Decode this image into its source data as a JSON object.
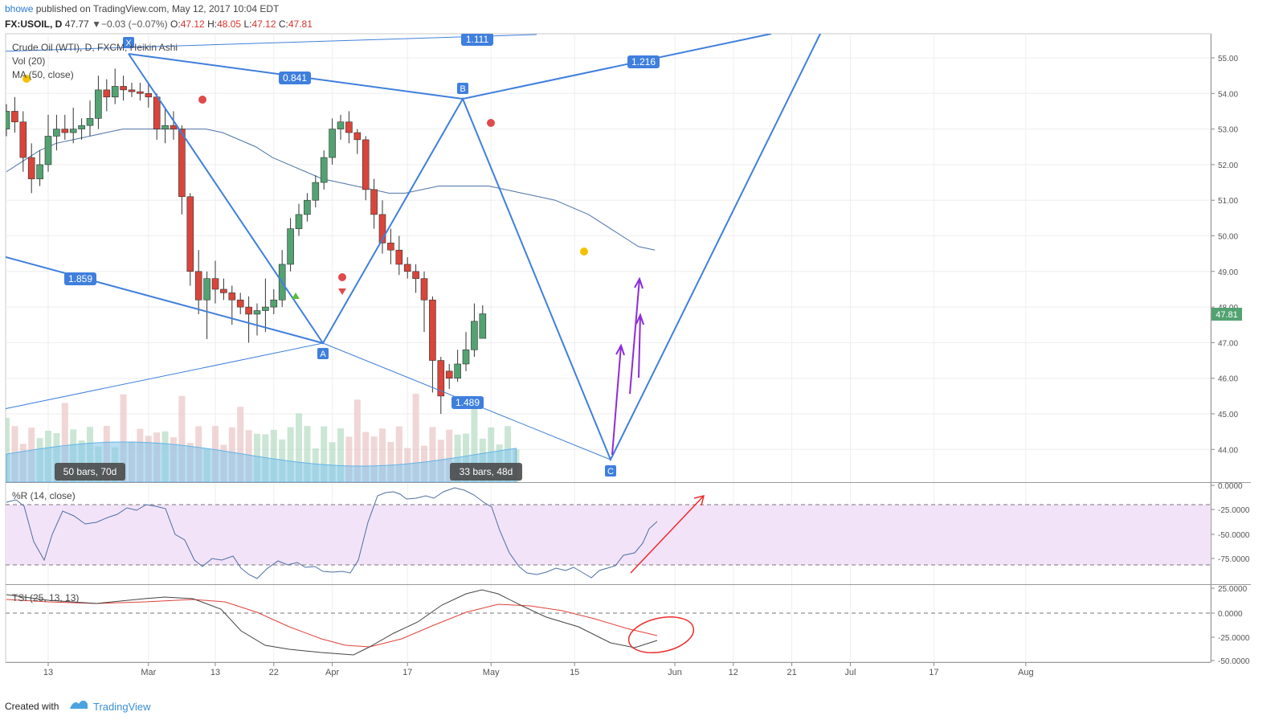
{
  "header": {
    "author": "bhowe",
    "published_text": "published on TradingView.com, May 12, 2017 10:04 EDT",
    "symbol": "FX:USOIL, D",
    "last": "47.77",
    "change_arrow": "▼",
    "change": "−0.03 (−0.07%)",
    "o_label": "O:",
    "o_value": "47.12",
    "h_label": "H:",
    "h_value": "48.05",
    "l_label": "L:",
    "l_value": "47.12",
    "c_label": "C:",
    "c_value": "47.81"
  },
  "legend": {
    "main": "Crude Oil (WTI), D, FXCM, Heikin Ashi",
    "vol": "Vol (20)",
    "ma": "MA (50, close)",
    "wr": "%R (14, close)",
    "tsi": "TSI (25, 13, 13)"
  },
  "footer": {
    "created_with": "Created with",
    "brand": "TradingView"
  },
  "colors": {
    "up": "#53a272",
    "down": "#d9453a",
    "pattern": "#3f7fdd",
    "purple": "#8e2cdb",
    "red_arrow": "#ee2b2b",
    "wr_fill": "#f3e3f8",
    "ma": "#4d73a7"
  },
  "chart_data": {
    "type": "candlestick",
    "timeframe": "D",
    "style": "Heikin Ashi",
    "price_axis_ticks": [
      "55.00",
      "54.00",
      "53.00",
      "52.00",
      "51.00",
      "50.00",
      "49.00",
      "48.00",
      "47.00",
      "46.00",
      "45.00",
      "44.00"
    ],
    "last_price_label": "47.81",
    "x_tick_labels": [
      {
        "label": "13",
        "i": 5
      },
      {
        "label": "Mar",
        "i": 17
      },
      {
        "label": "13",
        "i": 25
      },
      {
        "label": "22",
        "i": 32
      },
      {
        "label": "Apr",
        "i": 39
      },
      {
        "label": "17",
        "i": 48
      },
      {
        "label": "May",
        "i": 58
      },
      {
        "label": "15",
        "i": 68
      },
      {
        "label": "Jun",
        "i": 80
      },
      {
        "label": "12",
        "i": 87
      },
      {
        "label": "21",
        "i": 94
      },
      {
        "label": "Jul",
        "i": 101
      },
      {
        "label": "17",
        "i": 111
      },
      {
        "label": "Aug",
        "i": 122
      }
    ],
    "candles": [
      [
        53.0,
        53.5,
        52.8,
        53.7
      ],
      [
        53.5,
        53.2,
        52.9,
        53.9
      ],
      [
        53.2,
        52.2,
        51.8,
        53.5
      ],
      [
        52.2,
        51.6,
        51.2,
        52.6
      ],
      [
        51.6,
        52.0,
        51.4,
        52.4
      ],
      [
        52.0,
        52.8,
        51.8,
        53.4
      ],
      [
        52.8,
        53.0,
        52.4,
        53.4
      ],
      [
        53.0,
        52.9,
        52.7,
        53.4
      ],
      [
        52.9,
        53.0,
        52.6,
        53.6
      ],
      [
        53.0,
        53.1,
        52.7,
        53.3
      ],
      [
        53.1,
        53.3,
        52.8,
        53.8
      ],
      [
        53.3,
        54.1,
        53.0,
        54.5
      ],
      [
        54.1,
        53.9,
        53.5,
        54.4
      ],
      [
        53.9,
        54.2,
        53.7,
        54.7
      ],
      [
        54.2,
        54.1,
        53.8,
        54.5
      ],
      [
        54.1,
        54.05,
        53.9,
        54.3
      ],
      [
        54.05,
        54.0,
        53.8,
        54.3
      ],
      [
        54.0,
        53.9,
        53.6,
        54.3
      ],
      [
        53.9,
        53.0,
        52.7,
        54.0
      ],
      [
        53.0,
        53.1,
        52.6,
        53.6
      ],
      [
        53.1,
        53.0,
        52.7,
        53.5
      ],
      [
        53.0,
        51.1,
        50.6,
        53.1
      ],
      [
        51.1,
        49.0,
        48.6,
        51.2
      ],
      [
        49.0,
        48.2,
        47.8,
        49.6
      ],
      [
        48.2,
        48.8,
        47.1,
        49.0
      ],
      [
        48.8,
        48.5,
        48.1,
        49.3
      ],
      [
        48.5,
        48.4,
        48.2,
        48.8
      ],
      [
        48.4,
        48.2,
        47.5,
        48.6
      ],
      [
        48.2,
        48.0,
        47.8,
        48.4
      ],
      [
        48.0,
        47.8,
        47.0,
        48.3
      ],
      [
        47.8,
        47.9,
        47.2,
        48.1
      ],
      [
        47.9,
        48.0,
        47.3,
        48.8
      ],
      [
        48.0,
        48.2,
        47.8,
        48.5
      ],
      [
        48.2,
        49.2,
        48.0,
        49.6
      ],
      [
        49.2,
        50.2,
        49.0,
        50.5
      ],
      [
        50.2,
        50.6,
        50.0,
        50.9
      ],
      [
        50.6,
        51.0,
        50.4,
        51.2
      ],
      [
        51.0,
        51.5,
        50.8,
        51.7
      ],
      [
        51.5,
        52.2,
        51.3,
        52.4
      ],
      [
        52.2,
        53.0,
        52.0,
        53.3
      ],
      [
        53.0,
        53.2,
        52.7,
        53.4
      ],
      [
        53.2,
        52.9,
        52.6,
        53.5
      ],
      [
        52.9,
        52.7,
        52.3,
        53.0
      ],
      [
        52.7,
        51.3,
        51.0,
        52.8
      ],
      [
        51.3,
        50.6,
        50.2,
        51.6
      ],
      [
        50.6,
        49.8,
        49.5,
        51.0
      ],
      [
        49.8,
        49.6,
        49.2,
        50.2
      ],
      [
        49.6,
        49.2,
        48.9,
        50.0
      ],
      [
        49.2,
        49.0,
        48.8,
        49.4
      ],
      [
        49.0,
        48.8,
        48.4,
        49.2
      ],
      [
        48.8,
        48.2,
        47.3,
        49.0
      ],
      [
        48.2,
        46.5,
        45.6,
        48.3
      ],
      [
        46.5,
        45.5,
        45.0,
        46.6
      ],
      [
        46.2,
        46.0,
        45.7,
        46.4
      ],
      [
        46.0,
        46.4,
        45.9,
        46.8
      ],
      [
        46.4,
        46.8,
        46.2,
        47.3
      ],
      [
        46.8,
        47.6,
        46.6,
        48.1
      ],
      [
        47.12,
        47.81,
        47.12,
        48.05
      ]
    ],
    "volume_bars_count": 62,
    "ma50": [
      51.8,
      52.1,
      52.4,
      52.6,
      52.7,
      52.8,
      52.9,
      53.0,
      53.0,
      53.0,
      53.0,
      53.0,
      53.0,
      52.9,
      52.7,
      52.5,
      52.2,
      52.0,
      51.8,
      51.6,
      51.5,
      51.4,
      51.3,
      51.2,
      51.2,
      51.3,
      51.4,
      51.4,
      51.4,
      51.4,
      51.3,
      51.2,
      51.1,
      51.0,
      50.8,
      50.6,
      50.3,
      50.0,
      49.7,
      49.6
    ],
    "drawings": {
      "pattern_points": [
        "X",
        "A",
        "B",
        "C"
      ],
      "ratios": [
        "1.111",
        "0.841",
        "1.216",
        "1.859",
        "1.489"
      ],
      "bar_labels": [
        "50 bars, 70d",
        "33 bars, 48d"
      ]
    },
    "wr_axis_ticks": [
      "0.0000",
      "-25.0000",
      "-50.0000",
      "-75.0000"
    ],
    "tsi_axis_ticks": [
      "25.0000",
      "0.0000",
      "-25.0000",
      "-50.0000"
    ]
  }
}
